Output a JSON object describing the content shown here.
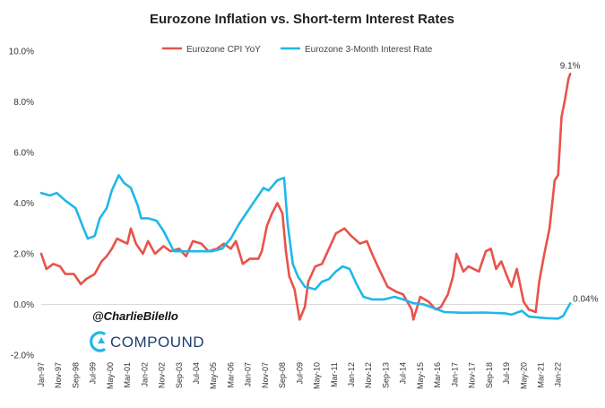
{
  "chart_data": {
    "type": "line",
    "title": "Eurozone Inflation vs. Short-term Interest Rates",
    "xlabel": "",
    "ylabel": "",
    "ylim": [
      -2,
      10
    ],
    "yticks": [
      "-2.0%",
      "0.0%",
      "2.0%",
      "4.0%",
      "6.0%",
      "8.0%",
      "10.0%"
    ],
    "xlim": [
      "1997-01",
      "2022-10"
    ],
    "xticks": [
      "Jan-97",
      "Nov-97",
      "Sep-98",
      "Jul-99",
      "May-00",
      "Mar-01",
      "Jan-02",
      "Nov-02",
      "Sep-03",
      "Jul-04",
      "May-05",
      "Mar-06",
      "Jan-07",
      "Nov-07",
      "Sep-08",
      "Jul-09",
      "May-10",
      "Mar-11",
      "Jan-12",
      "Nov-12",
      "Sep-13",
      "Jul-14",
      "May-15",
      "Mar-16",
      "Jan-17",
      "Nov-17",
      "Sep-18",
      "Jul-19",
      "May-20",
      "Mar-21",
      "Jan-22"
    ],
    "legend_position": "top",
    "grid": false,
    "annotations": [
      {
        "text": "9.1%",
        "series": "Eurozone CPI YoY"
      },
      {
        "text": "0.04%",
        "series": "Eurozone 3-Month Interest Rate"
      }
    ],
    "series": [
      {
        "name": "Eurozone CPI YoY",
        "color": "#e8534a",
        "points": [
          [
            "1997-01",
            2.0
          ],
          [
            "1997-04",
            1.4
          ],
          [
            "1997-08",
            1.6
          ],
          [
            "1997-12",
            1.5
          ],
          [
            "1998-03",
            1.2
          ],
          [
            "1998-08",
            1.2
          ],
          [
            "1998-12",
            0.8
          ],
          [
            "1999-03",
            1.0
          ],
          [
            "1999-08",
            1.2
          ],
          [
            "1999-12",
            1.7
          ],
          [
            "2000-03",
            1.9
          ],
          [
            "2000-06",
            2.2
          ],
          [
            "2000-09",
            2.6
          ],
          [
            "2000-12",
            2.5
          ],
          [
            "2001-03",
            2.4
          ],
          [
            "2001-05",
            3.0
          ],
          [
            "2001-08",
            2.4
          ],
          [
            "2001-12",
            2.0
          ],
          [
            "2002-03",
            2.5
          ],
          [
            "2002-07",
            2.0
          ],
          [
            "2002-12",
            2.3
          ],
          [
            "2003-04",
            2.1
          ],
          [
            "2003-09",
            2.2
          ],
          [
            "2004-01",
            1.9
          ],
          [
            "2004-05",
            2.5
          ],
          [
            "2004-10",
            2.4
          ],
          [
            "2005-02",
            2.1
          ],
          [
            "2005-07",
            2.2
          ],
          [
            "2005-11",
            2.4
          ],
          [
            "2006-03",
            2.2
          ],
          [
            "2006-06",
            2.5
          ],
          [
            "2006-10",
            1.6
          ],
          [
            "2007-02",
            1.8
          ],
          [
            "2007-07",
            1.8
          ],
          [
            "2007-09",
            2.1
          ],
          [
            "2007-12",
            3.1
          ],
          [
            "2008-03",
            3.6
          ],
          [
            "2008-06",
            4.0
          ],
          [
            "2008-09",
            3.6
          ],
          [
            "2008-11",
            2.1
          ],
          [
            "2009-01",
            1.1
          ],
          [
            "2009-04",
            0.6
          ],
          [
            "2009-07",
            -0.6
          ],
          [
            "2009-10",
            -0.1
          ],
          [
            "2009-12",
            0.9
          ],
          [
            "2010-04",
            1.5
          ],
          [
            "2010-08",
            1.6
          ],
          [
            "2010-12",
            2.2
          ],
          [
            "2011-04",
            2.8
          ],
          [
            "2011-09",
            3.0
          ],
          [
            "2012-01",
            2.7
          ],
          [
            "2012-06",
            2.4
          ],
          [
            "2012-10",
            2.5
          ],
          [
            "2013-01",
            2.0
          ],
          [
            "2013-05",
            1.4
          ],
          [
            "2013-10",
            0.7
          ],
          [
            "2014-03",
            0.5
          ],
          [
            "2014-07",
            0.4
          ],
          [
            "2014-12",
            -0.2
          ],
          [
            "2015-01",
            -0.6
          ],
          [
            "2015-05",
            0.3
          ],
          [
            "2015-10",
            0.1
          ],
          [
            "2016-02",
            -0.2
          ],
          [
            "2016-05",
            -0.1
          ],
          [
            "2016-09",
            0.4
          ],
          [
            "2016-12",
            1.1
          ],
          [
            "2017-02",
            2.0
          ],
          [
            "2017-06",
            1.3
          ],
          [
            "2017-09",
            1.5
          ],
          [
            "2017-12",
            1.4
          ],
          [
            "2018-03",
            1.3
          ],
          [
            "2018-07",
            2.1
          ],
          [
            "2018-10",
            2.2
          ],
          [
            "2019-01",
            1.4
          ],
          [
            "2019-04",
            1.7
          ],
          [
            "2019-08",
            1.0
          ],
          [
            "2019-10",
            0.7
          ],
          [
            "2020-01",
            1.4
          ],
          [
            "2020-05",
            0.1
          ],
          [
            "2020-08",
            -0.2
          ],
          [
            "2020-12",
            -0.3
          ],
          [
            "2021-02",
            0.9
          ],
          [
            "2021-05",
            2.0
          ],
          [
            "2021-08",
            3.0
          ],
          [
            "2021-11",
            4.9
          ],
          [
            "2022-01",
            5.1
          ],
          [
            "2022-03",
            7.4
          ],
          [
            "2022-05",
            8.1
          ],
          [
            "2022-07",
            8.9
          ],
          [
            "2022-08",
            9.1
          ]
        ]
      },
      {
        "name": "Eurozone 3-Month Interest Rate",
        "color": "#1fb8e8",
        "points": [
          [
            "1997-01",
            4.4
          ],
          [
            "1997-06",
            4.3
          ],
          [
            "1997-10",
            4.4
          ],
          [
            "1998-03",
            4.1
          ],
          [
            "1998-09",
            3.8
          ],
          [
            "1999-01",
            3.1
          ],
          [
            "1999-04",
            2.6
          ],
          [
            "1999-08",
            2.7
          ],
          [
            "1999-11",
            3.4
          ],
          [
            "2000-03",
            3.8
          ],
          [
            "2000-06",
            4.5
          ],
          [
            "2000-10",
            5.1
          ],
          [
            "2001-01",
            4.8
          ],
          [
            "2001-05",
            4.6
          ],
          [
            "2001-09",
            3.9
          ],
          [
            "2001-11",
            3.4
          ],
          [
            "2002-03",
            3.4
          ],
          [
            "2002-08",
            3.3
          ],
          [
            "2002-12",
            2.9
          ],
          [
            "2003-06",
            2.1
          ],
          [
            "2004-01",
            2.1
          ],
          [
            "2004-08",
            2.1
          ],
          [
            "2005-04",
            2.1
          ],
          [
            "2005-10",
            2.2
          ],
          [
            "2006-03",
            2.6
          ],
          [
            "2006-08",
            3.2
          ],
          [
            "2007-01",
            3.7
          ],
          [
            "2007-06",
            4.2
          ],
          [
            "2007-10",
            4.6
          ],
          [
            "2008-01",
            4.5
          ],
          [
            "2008-06",
            4.9
          ],
          [
            "2008-10",
            5.0
          ],
          [
            "2008-12",
            3.2
          ],
          [
            "2009-03",
            1.6
          ],
          [
            "2009-06",
            1.1
          ],
          [
            "2009-10",
            0.7
          ],
          [
            "2010-04",
            0.6
          ],
          [
            "2010-08",
            0.9
          ],
          [
            "2010-12",
            1.0
          ],
          [
            "2011-04",
            1.3
          ],
          [
            "2011-08",
            1.5
          ],
          [
            "2011-12",
            1.4
          ],
          [
            "2012-04",
            0.8
          ],
          [
            "2012-08",
            0.3
          ],
          [
            "2013-01",
            0.2
          ],
          [
            "2013-08",
            0.2
          ],
          [
            "2014-02",
            0.3
          ],
          [
            "2014-07",
            0.2
          ],
          [
            "2015-01",
            0.05
          ],
          [
            "2015-07",
            0.0
          ],
          [
            "2016-01",
            -0.15
          ],
          [
            "2016-07",
            -0.3
          ],
          [
            "2017-06",
            -0.33
          ],
          [
            "2018-06",
            -0.32
          ],
          [
            "2019-06",
            -0.35
          ],
          [
            "2019-10",
            -0.4
          ],
          [
            "2020-04",
            -0.25
          ],
          [
            "2020-08",
            -0.48
          ],
          [
            "2021-06",
            -0.54
          ],
          [
            "2022-01",
            -0.56
          ],
          [
            "2022-04",
            -0.45
          ],
          [
            "2022-06",
            -0.2
          ],
          [
            "2022-08",
            0.04
          ]
        ]
      }
    ]
  },
  "watermark": {
    "handle": "@CharlieBilello",
    "logo_text": "COMPOUND"
  }
}
